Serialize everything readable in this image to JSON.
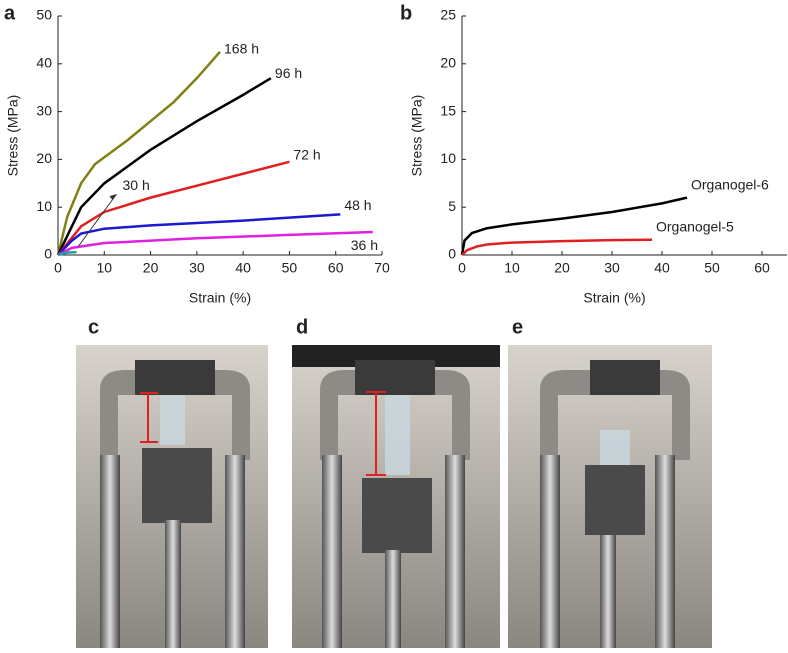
{
  "chart_data": [
    {
      "type": "line",
      "panel": "a",
      "xlabel": "Strain (%)",
      "ylabel": "Stress (MPa)",
      "xlim": [
        0,
        70
      ],
      "xticks": [
        0,
        10,
        20,
        30,
        40,
        50,
        60,
        70
      ],
      "ylim": [
        0,
        50
      ],
      "yticks": [
        0,
        10,
        20,
        30,
        40,
        50
      ],
      "series": [
        {
          "name": "168 h",
          "color": "#808014",
          "x": [
            0,
            2,
            5,
            8,
            15,
            25,
            30,
            35
          ],
          "values": [
            0,
            8,
            15,
            19,
            24,
            32,
            37,
            42.5
          ]
        },
        {
          "name": "96 h",
          "color": "#000000",
          "x": [
            0,
            5,
            10,
            20,
            30,
            40,
            46
          ],
          "values": [
            0,
            10,
            15,
            22,
            28,
            33.5,
            37
          ]
        },
        {
          "name": "72 h",
          "color": "#e02020",
          "x": [
            0,
            5,
            10,
            20,
            30,
            40,
            50
          ],
          "values": [
            0,
            6,
            9,
            12,
            14.5,
            17,
            19.5
          ]
        },
        {
          "name": "48 h",
          "color": "#1a1ad0",
          "x": [
            0,
            3,
            5,
            10,
            20,
            40,
            61
          ],
          "values": [
            0,
            3,
            4.5,
            5.5,
            6.2,
            7.2,
            8.5
          ]
        },
        {
          "name": "36 h",
          "color": "#e020e0",
          "x": [
            0,
            3,
            10,
            30,
            50,
            68
          ],
          "values": [
            0,
            1.5,
            2.5,
            3.5,
            4.2,
            4.8
          ]
        },
        {
          "name": "30 h",
          "color": "#20a0a0",
          "x": [
            0,
            2,
            4
          ],
          "values": [
            0,
            0.5,
            0.6
          ]
        }
      ]
    },
    {
      "type": "line",
      "panel": "b",
      "xlabel": "Strain (%)",
      "ylabel": "Stress (MPa)",
      "xlim": [
        0,
        65
      ],
      "xticks": [
        0,
        10,
        20,
        30,
        40,
        50,
        60
      ],
      "ylim": [
        0,
        25
      ],
      "yticks": [
        0,
        5,
        10,
        15,
        20,
        25
      ],
      "series": [
        {
          "name": "Organogel-6",
          "color": "#000000",
          "x": [
            0,
            0.5,
            2,
            5,
            10,
            20,
            30,
            40,
            45
          ],
          "values": [
            0,
            1.5,
            2.3,
            2.8,
            3.2,
            3.8,
            4.5,
            5.4,
            6
          ]
        },
        {
          "name": "Organogel-5",
          "color": "#e02020",
          "x": [
            0,
            1,
            3,
            5,
            10,
            20,
            30,
            38
          ],
          "values": [
            0,
            0.5,
            0.9,
            1.1,
            1.3,
            1.45,
            1.55,
            1.6
          ]
        }
      ]
    }
  ],
  "photos": [
    {
      "label": "c"
    },
    {
      "label": "d"
    },
    {
      "label": "e"
    }
  ]
}
